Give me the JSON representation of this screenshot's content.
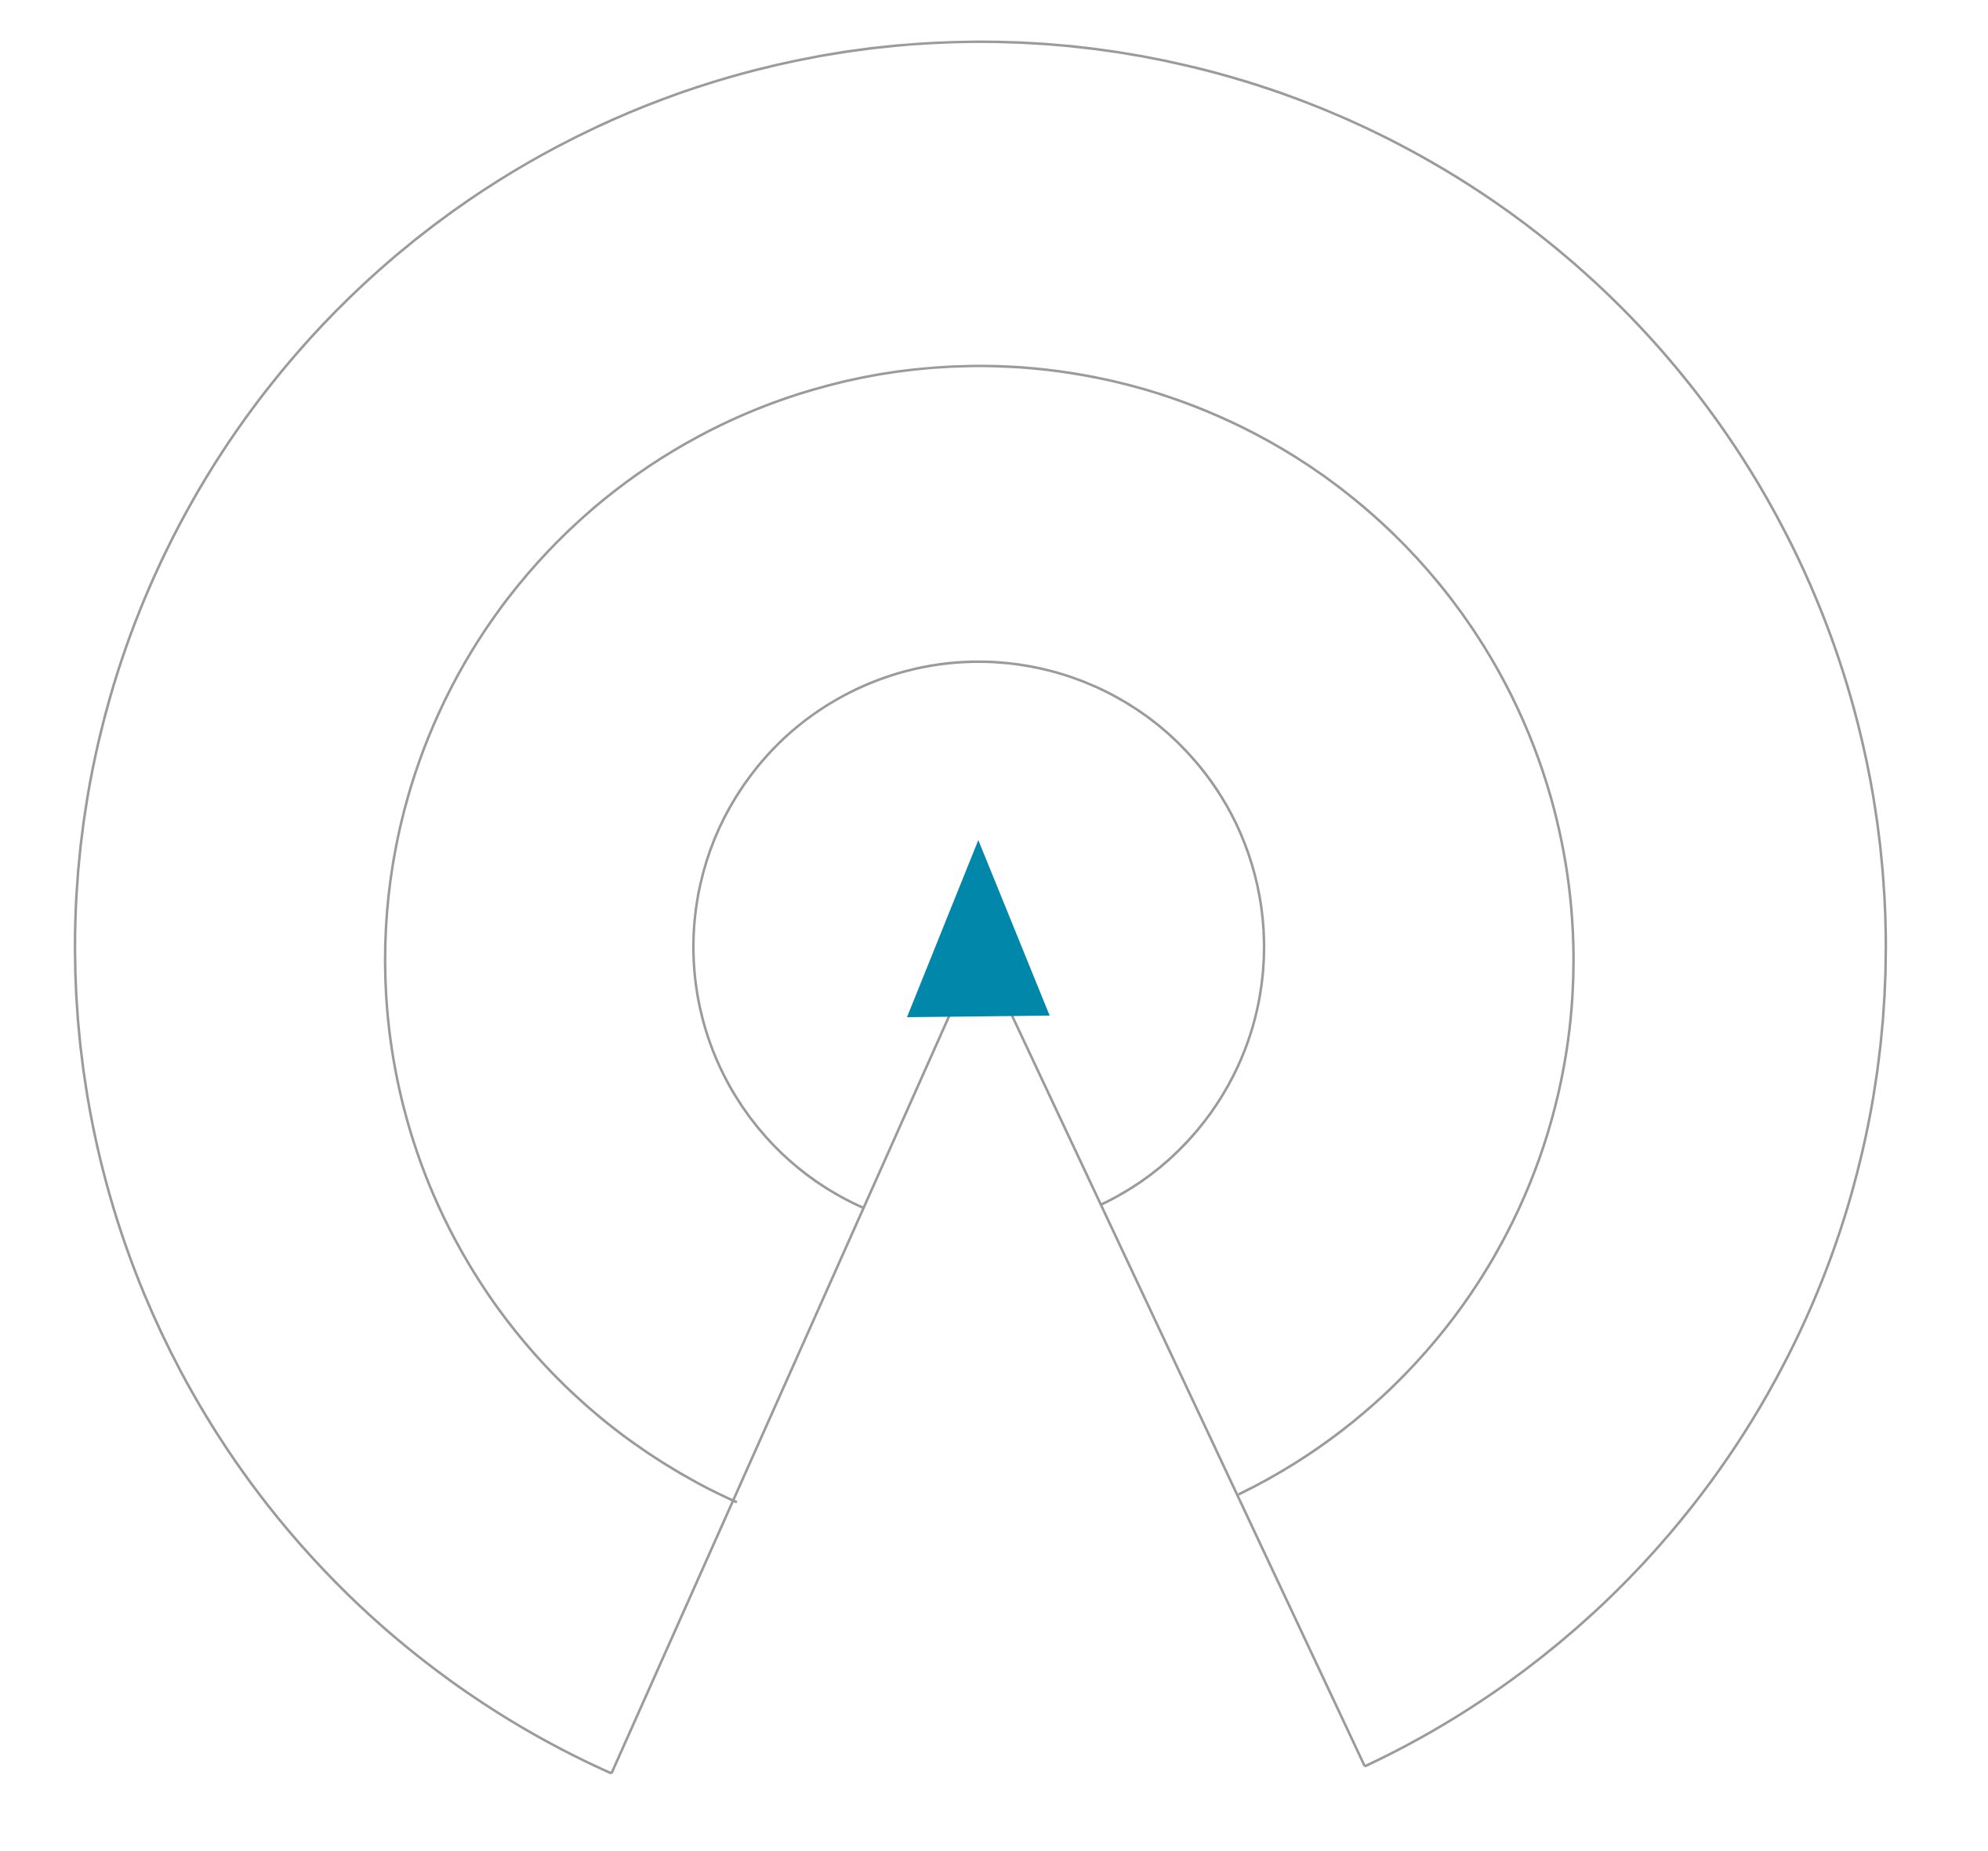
{
  "diagram": {
    "kind": "radio-tower-rings",
    "colors": {
      "background": "#ffffff",
      "outline": "#9b9b9b",
      "marker": "#0087aa"
    },
    "rings": [
      {
        "name": "inner-ring"
      },
      {
        "name": "middle-ring"
      },
      {
        "name": "outer-ring"
      }
    ],
    "marker": {
      "name": "tower-triangle-icon"
    }
  }
}
